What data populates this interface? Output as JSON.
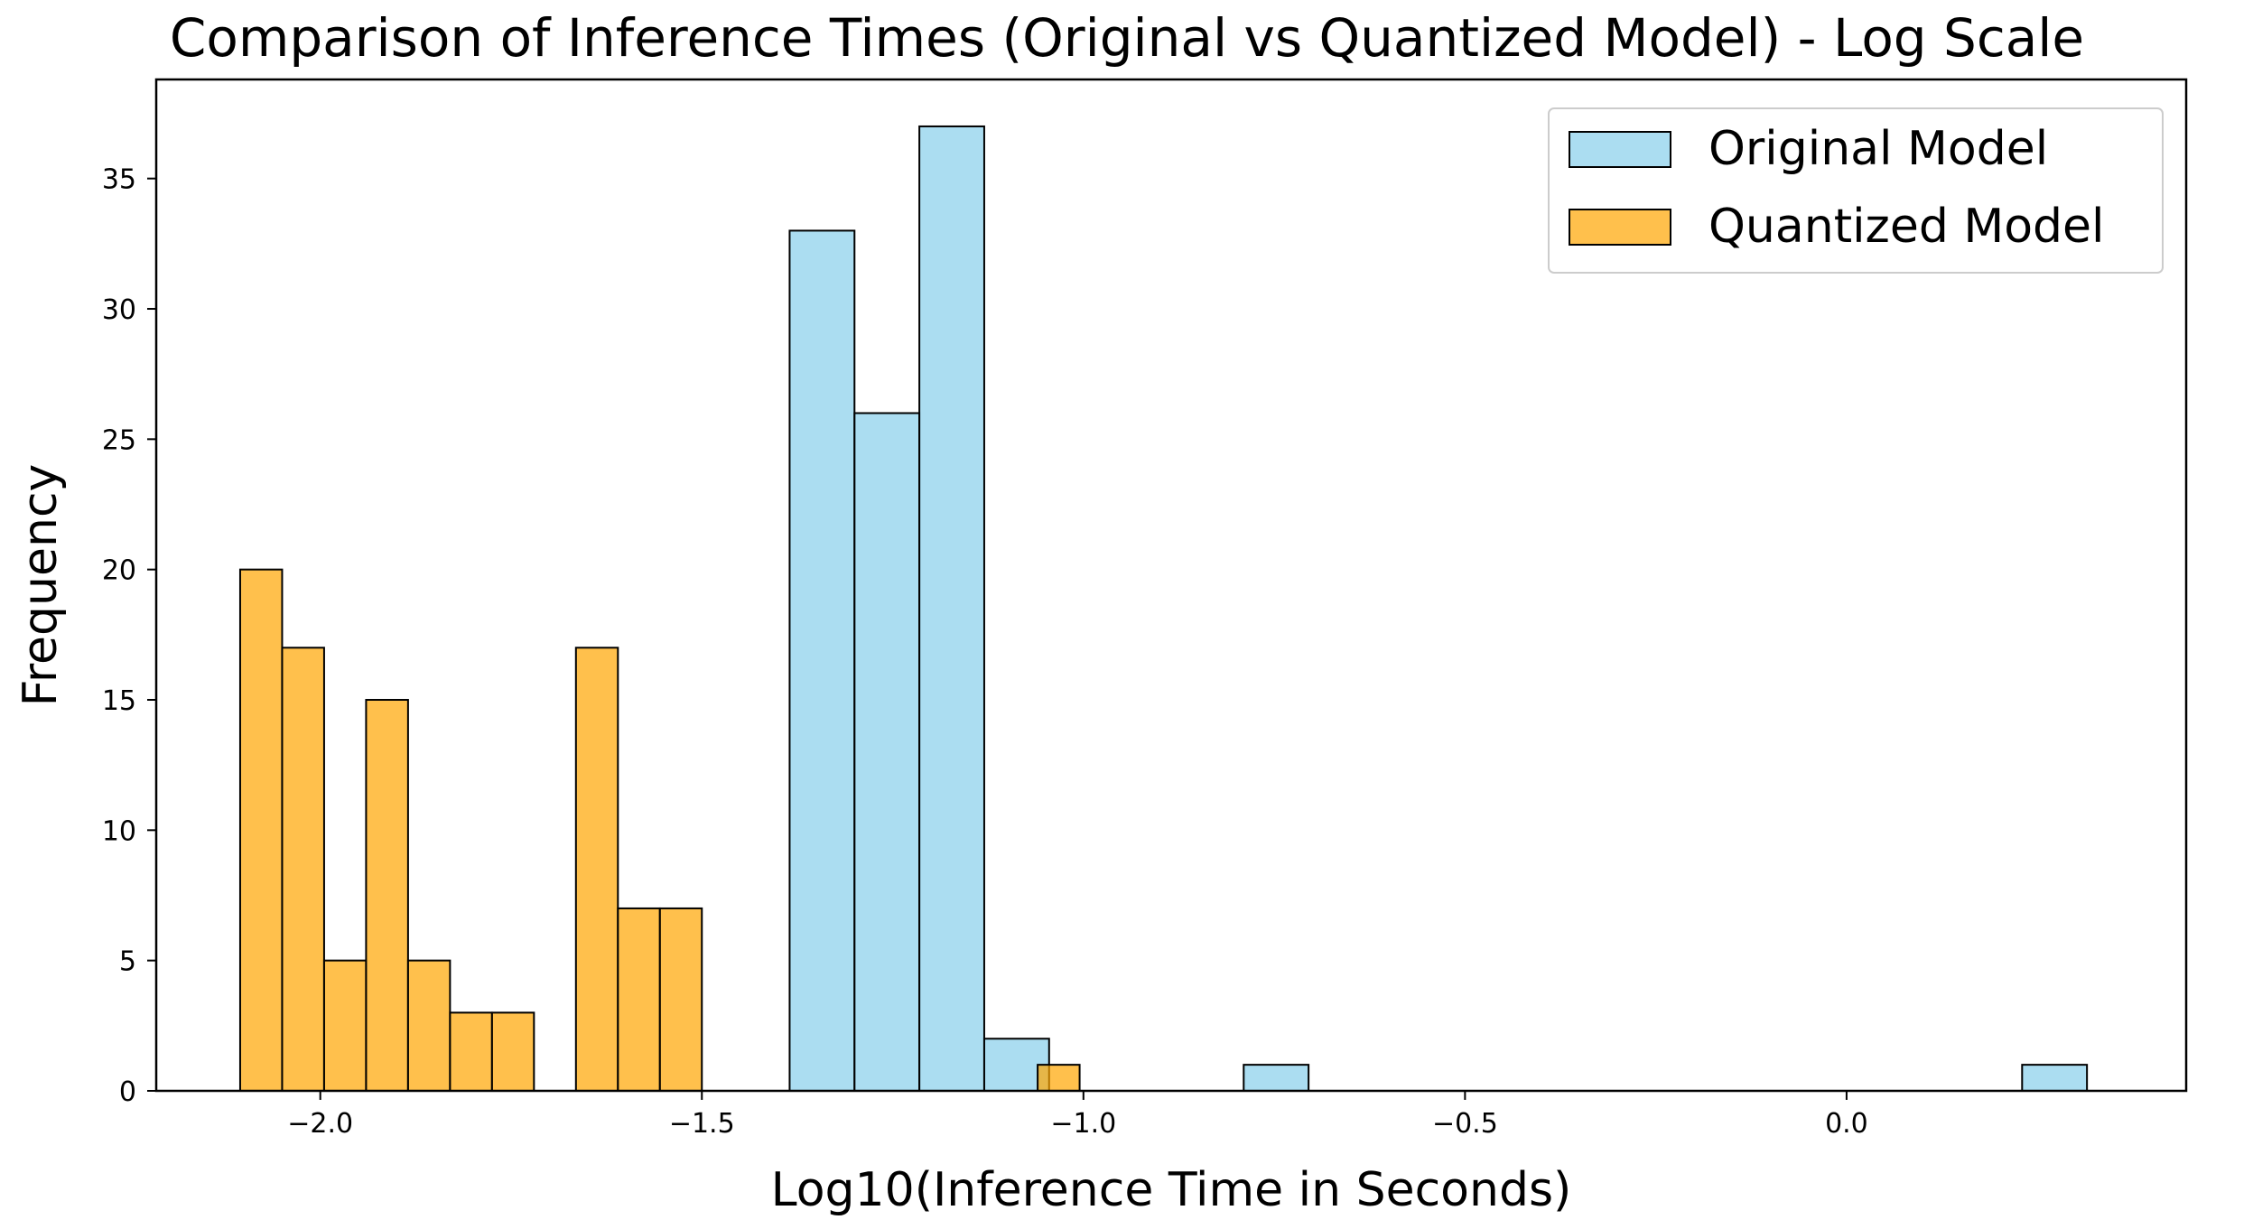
{
  "chart_data": {
    "type": "bar",
    "title": "Comparison of Inference Times (Original vs Quantized Model) - Log Scale",
    "xlabel": "Log10(Inference Time in Seconds)",
    "ylabel": "Frequency",
    "xlim": [
      -2.215,
      0.445
    ],
    "ylim": [
      0,
      38.8
    ],
    "xticks": [
      -2.0,
      -1.5,
      -1.0,
      -0.5,
      0.0
    ],
    "xtick_labels": [
      "−2.0",
      "−1.5",
      "−1.0",
      "−0.5",
      "0.0"
    ],
    "yticks": [
      0,
      5,
      10,
      15,
      20,
      25,
      30,
      35
    ],
    "ytick_labels": [
      "0",
      "5",
      "10",
      "15",
      "20",
      "25",
      "30",
      "35"
    ],
    "grid": false,
    "legend_position": "top-right",
    "series": [
      {
        "name": "Original Model",
        "color": "#87CEEB",
        "bins": [
          {
            "x0": -1.385,
            "x1": -1.3,
            "count": 33
          },
          {
            "x0": -1.3,
            "x1": -1.215,
            "count": 26
          },
          {
            "x0": -1.215,
            "x1": -1.13,
            "count": 37
          },
          {
            "x0": -1.13,
            "x1": -1.045,
            "count": 2
          },
          {
            "x0": -0.79,
            "x1": -0.705,
            "count": 1
          },
          {
            "x0": 0.23,
            "x1": 0.315,
            "count": 1
          }
        ]
      },
      {
        "name": "Quantized Model",
        "color": "#FFA500",
        "bins": [
          {
            "x0": -2.105,
            "x1": -2.05,
            "count": 20
          },
          {
            "x0": -2.05,
            "x1": -1.995,
            "count": 17
          },
          {
            "x0": -1.995,
            "x1": -1.94,
            "count": 5
          },
          {
            "x0": -1.94,
            "x1": -1.885,
            "count": 15
          },
          {
            "x0": -1.885,
            "x1": -1.83,
            "count": 5
          },
          {
            "x0": -1.83,
            "x1": -1.775,
            "count": 3
          },
          {
            "x0": -1.775,
            "x1": -1.72,
            "count": 3
          },
          {
            "x0": -1.72,
            "x1": -1.665,
            "count": 0
          },
          {
            "x0": -1.665,
            "x1": -1.61,
            "count": 17
          },
          {
            "x0": -1.61,
            "x1": -1.555,
            "count": 7
          },
          {
            "x0": -1.555,
            "x1": -1.5,
            "count": 7
          },
          {
            "x0": -1.06,
            "x1": -1.005,
            "count": 1
          }
        ]
      }
    ]
  }
}
